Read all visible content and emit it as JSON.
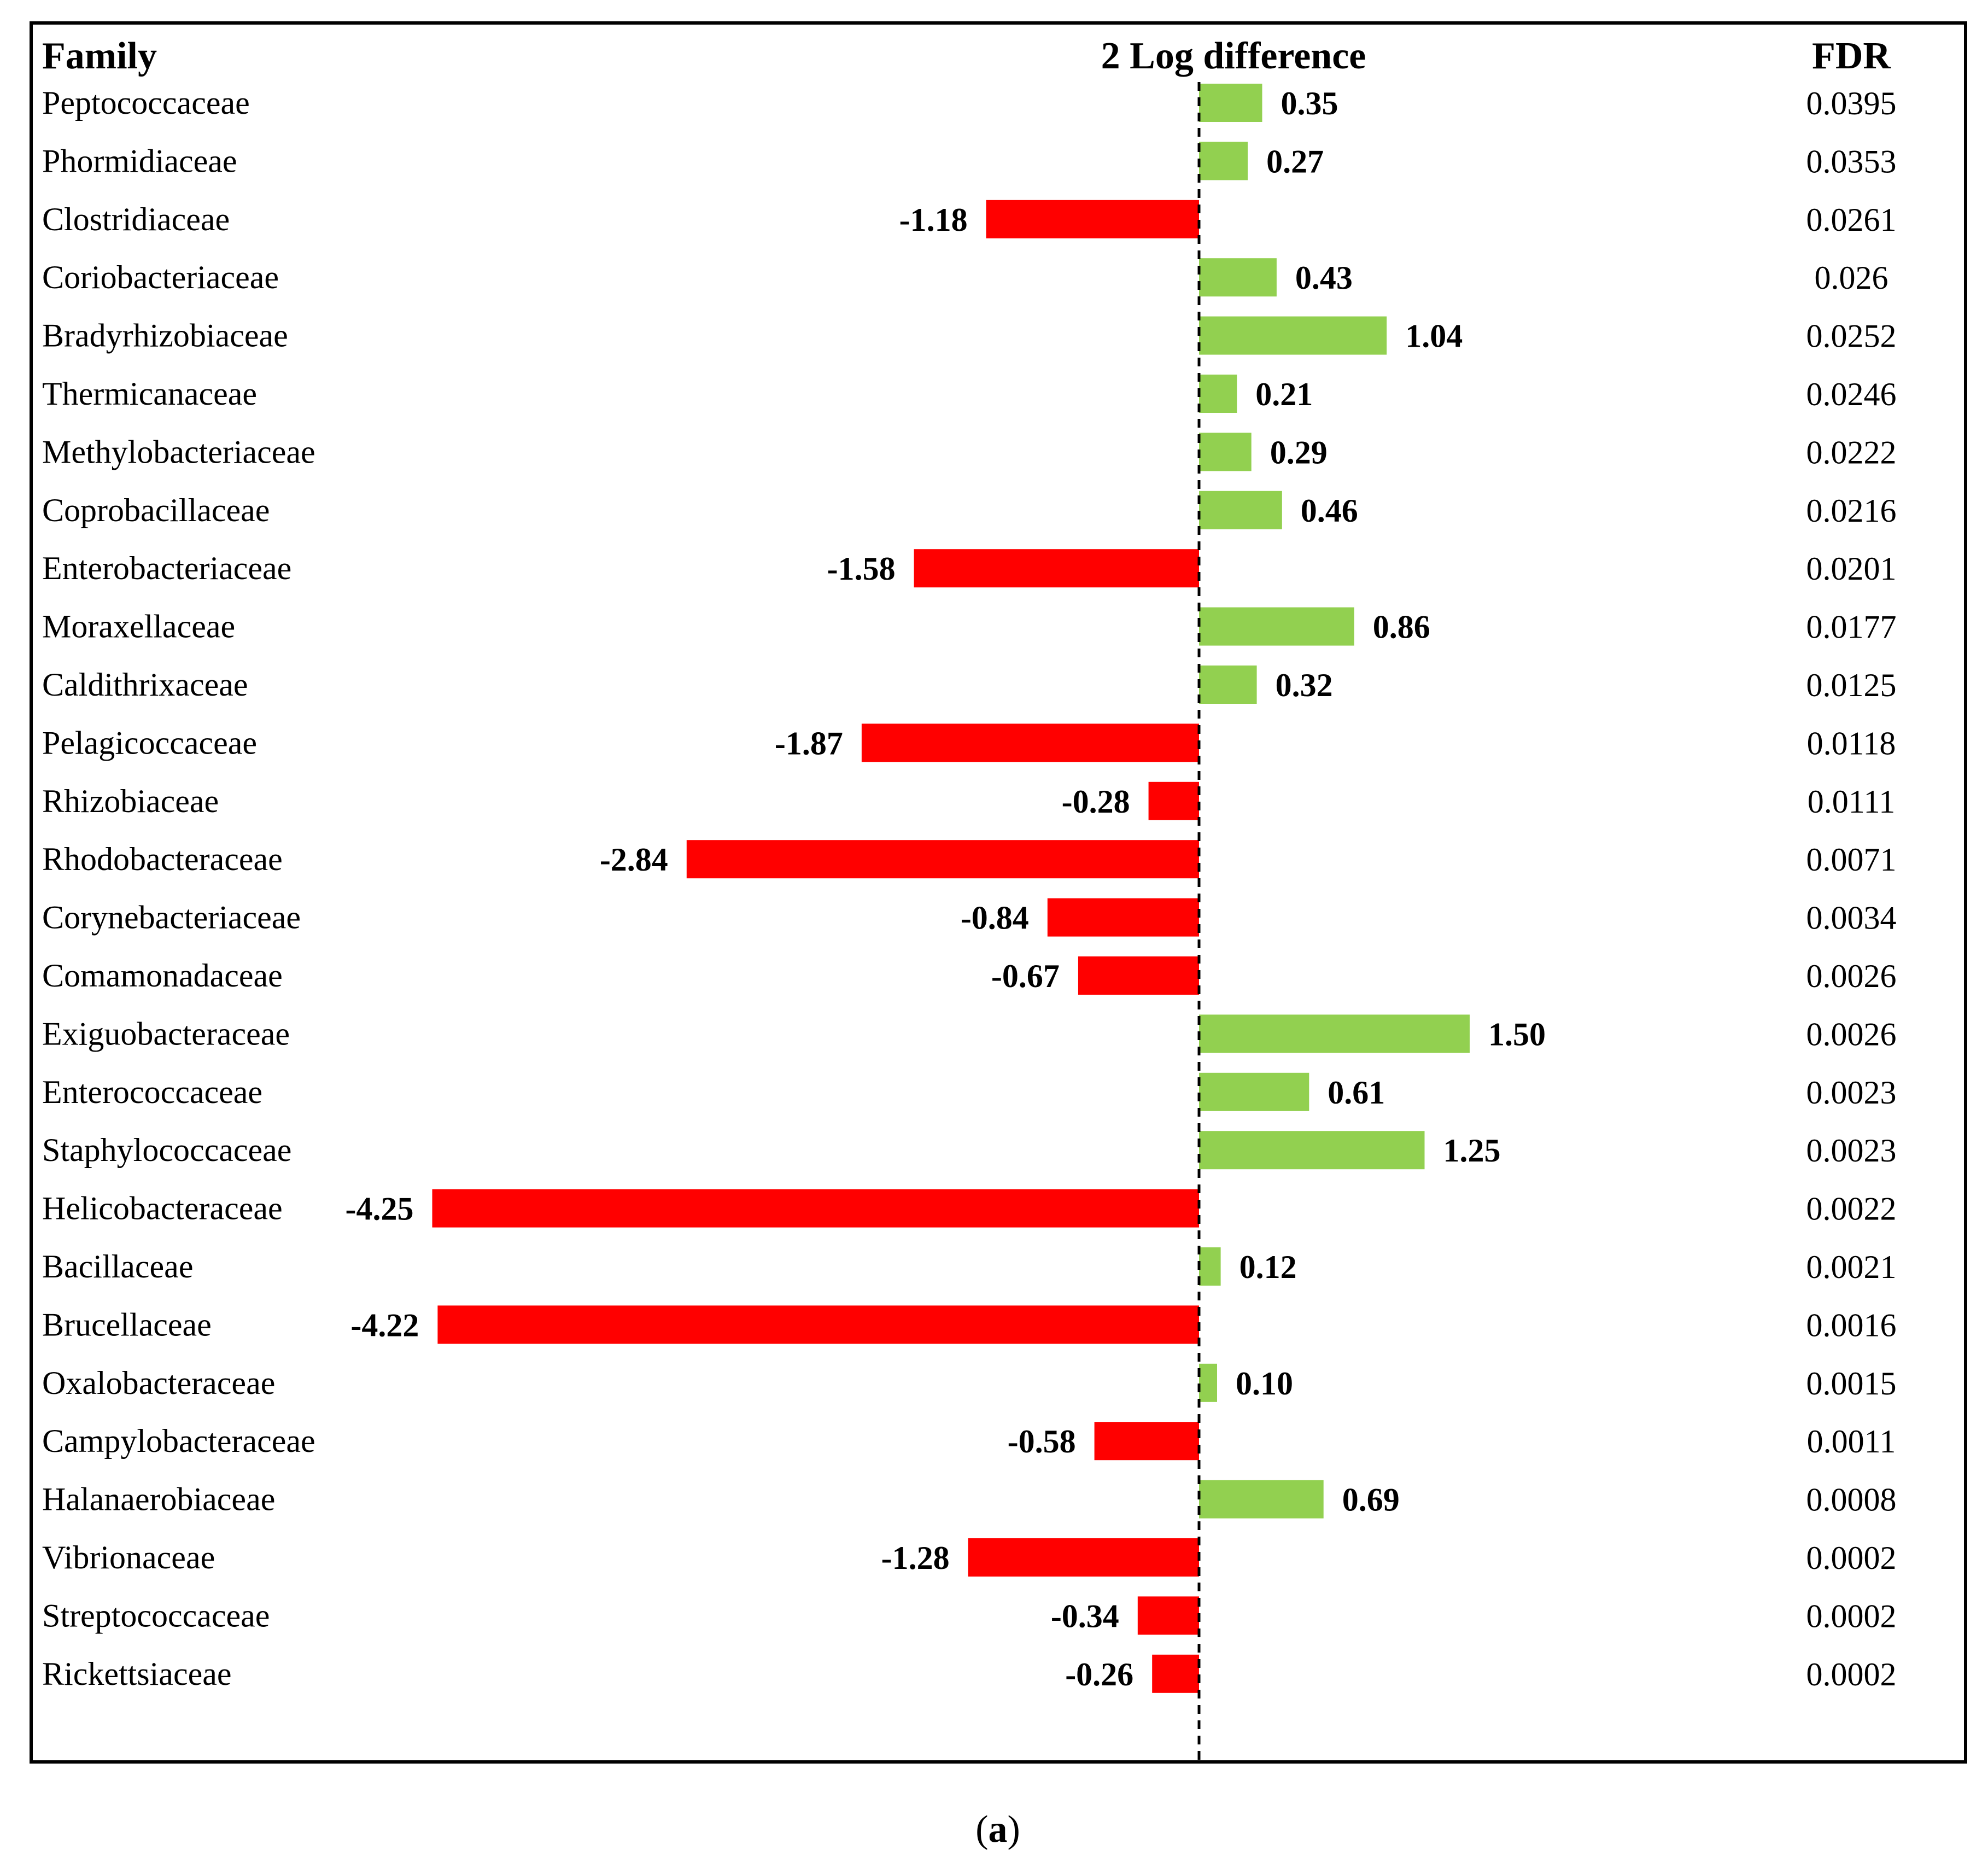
{
  "chart_data": {
    "type": "bar",
    "orientation": "horizontal",
    "headers": {
      "family": "Family",
      "value": "2 Log difference",
      "fdr": "FDR"
    },
    "caption_letter": "a",
    "positive_color": "#92d050",
    "negative_color": "#ff0000",
    "rows": [
      {
        "family": "Peptococcaceae",
        "value": 0.35,
        "label": "0.35",
        "fdr": "0.0395"
      },
      {
        "family": "Phormidiaceae",
        "value": 0.27,
        "label": "0.27",
        "fdr": "0.0353"
      },
      {
        "family": "Clostridiaceae",
        "value": -1.18,
        "label": "-1.18",
        "fdr": "0.0261"
      },
      {
        "family": "Coriobacteriaceae",
        "value": 0.43,
        "label": "0.43",
        "fdr": "0.026"
      },
      {
        "family": "Bradyrhizobiaceae",
        "value": 1.04,
        "label": "1.04",
        "fdr": "0.0252"
      },
      {
        "family": "Thermicanaceae",
        "value": 0.21,
        "label": "0.21",
        "fdr": "0.0246"
      },
      {
        "family": "Methylobacteriaceae",
        "value": 0.29,
        "label": "0.29",
        "fdr": "0.0222"
      },
      {
        "family": "Coprobacillaceae",
        "value": 0.46,
        "label": "0.46",
        "fdr": "0.0216"
      },
      {
        "family": "Enterobacteriaceae",
        "value": -1.58,
        "label": "-1.58",
        "fdr": "0.0201"
      },
      {
        "family": "Moraxellaceae",
        "value": 0.86,
        "label": "0.86",
        "fdr": "0.0177"
      },
      {
        "family": "Caldithrixaceae",
        "value": 0.32,
        "label": "0.32",
        "fdr": "0.0125"
      },
      {
        "family": "Pelagicoccaceae",
        "value": -1.87,
        "label": "-1.87",
        "fdr": "0.0118"
      },
      {
        "family": "Rhizobiaceae",
        "value": -0.28,
        "label": "-0.28",
        "fdr": "0.0111"
      },
      {
        "family": "Rhodobacteraceae",
        "value": -2.84,
        "label": "-2.84",
        "fdr": "0.0071"
      },
      {
        "family": "Corynebacteriaceae",
        "value": -0.84,
        "label": "-0.84",
        "fdr": "0.0034"
      },
      {
        "family": "Comamonadaceae",
        "value": -0.67,
        "label": "-0.67",
        "fdr": "0.0026"
      },
      {
        "family": "Exiguobacteraceae",
        "value": 1.5,
        "label": "1.50",
        "fdr": "0.0026"
      },
      {
        "family": "Enterococcaceae",
        "value": 0.61,
        "label": "0.61",
        "fdr": "0.0023"
      },
      {
        "family": "Staphylococcaceae",
        "value": 1.25,
        "label": "1.25",
        "fdr": "0.0023"
      },
      {
        "family": "Helicobacteraceae",
        "value": -4.25,
        "label": "-4.25",
        "fdr": "0.0022"
      },
      {
        "family": "Bacillaceae",
        "value": 0.12,
        "label": "0.12",
        "fdr": "0.0021"
      },
      {
        "family": "Brucellaceae",
        "value": -4.22,
        "label": "-4.22",
        "fdr": "0.0016"
      },
      {
        "family": "Oxalobacteraceae",
        "value": 0.1,
        "label": "0.10",
        "fdr": "0.0015"
      },
      {
        "family": "Campylobacteraceae",
        "value": -0.58,
        "label": "-0.58",
        "fdr": "0.0011"
      },
      {
        "family": "Halanaerobiaceae",
        "value": 0.69,
        "label": "0.69",
        "fdr": "0.0008"
      },
      {
        "family": "Vibrionaceae",
        "value": -1.28,
        "label": "-1.28",
        "fdr": "0.0002"
      },
      {
        "family": "Streptococcaceae",
        "value": -0.34,
        "label": "-0.34",
        "fdr": "0.0002"
      },
      {
        "family": "Rickettsiaceae",
        "value": -0.26,
        "label": "-0.26",
        "fdr": "0.0002"
      }
    ]
  }
}
